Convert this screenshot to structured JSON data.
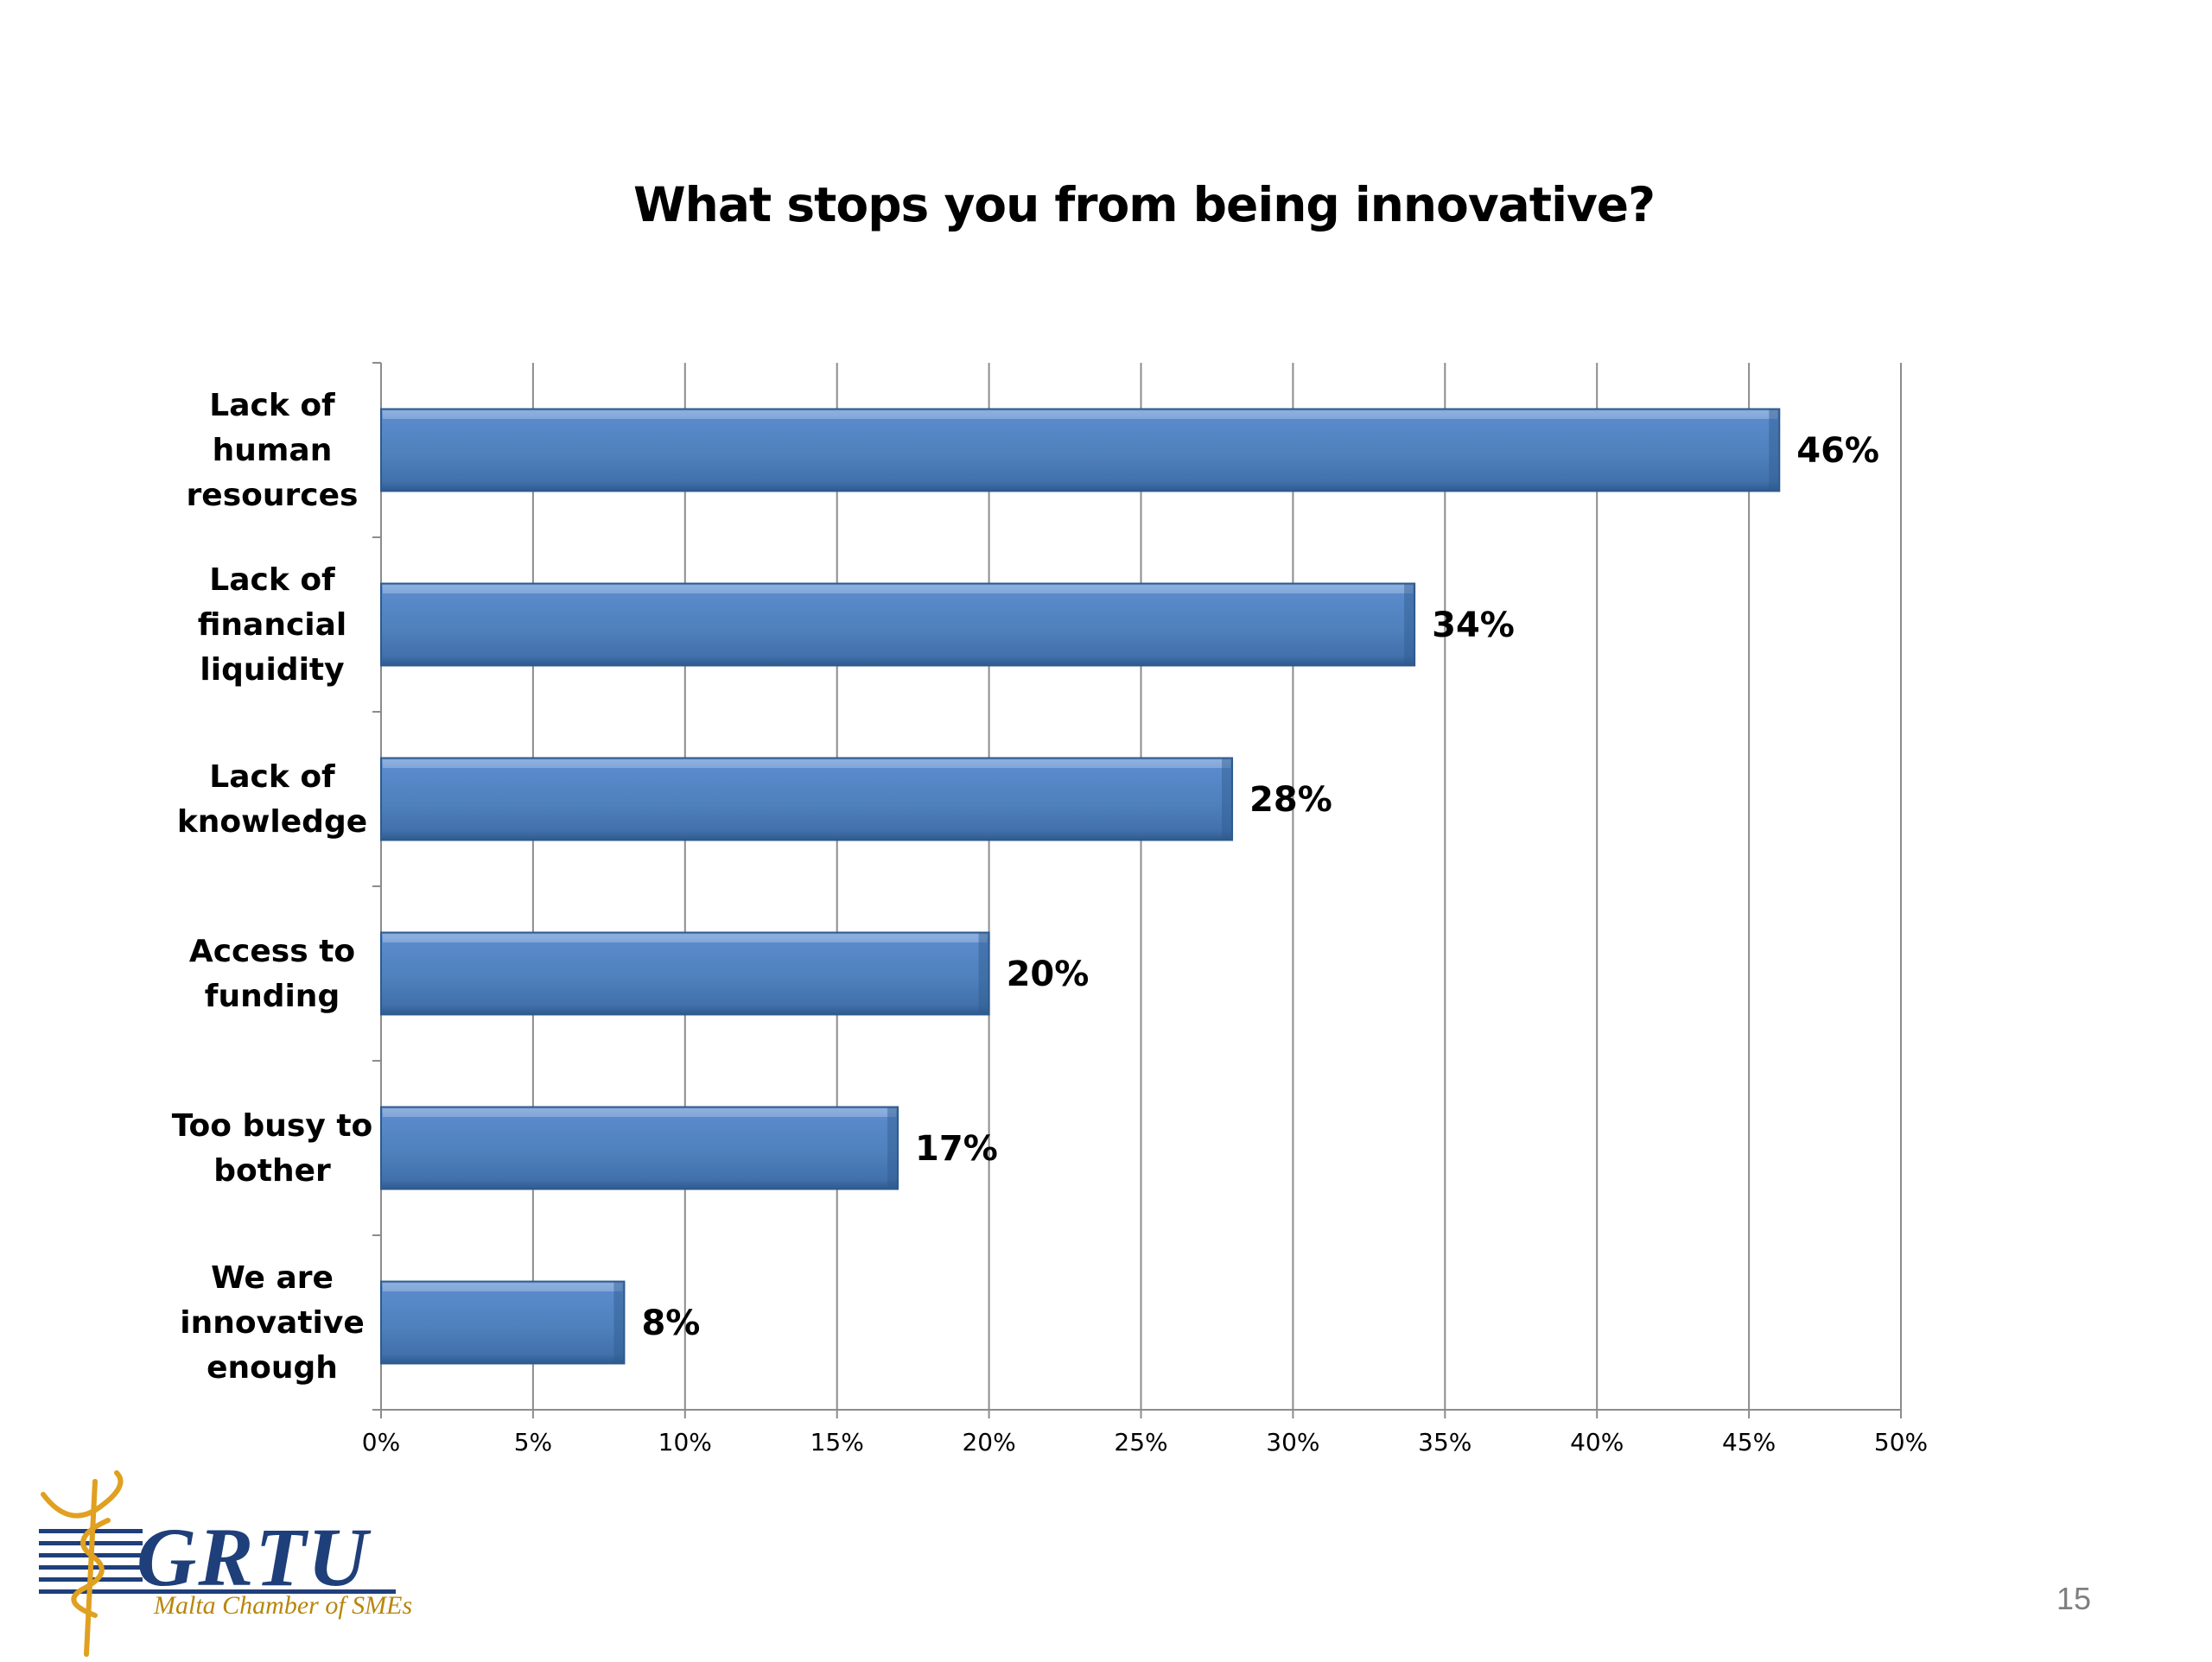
{
  "chart_data": {
    "type": "bar",
    "orientation": "horizontal",
    "title": "What stops you from being innovative?",
    "categories": [
      "Lack of human resources",
      "Lack of financial liquidity",
      "Lack of knowledge",
      "Access to funding",
      "Too busy to bother",
      "We are innovative enough"
    ],
    "category_label_lines": [
      [
        "Lack of",
        "human",
        "resources"
      ],
      [
        "Lack of",
        "financial",
        "liquidity"
      ],
      [
        "Lack of",
        "knowledge"
      ],
      [
        "Access to",
        "funding"
      ],
      [
        "Too busy to",
        "bother"
      ],
      [
        "We are",
        "innovative",
        "enough"
      ]
    ],
    "values": [
      46,
      34,
      28,
      20,
      17,
      8
    ],
    "data_labels": [
      "46%",
      "34%",
      "28%",
      "20%",
      "17%",
      "8%"
    ],
    "xlim": [
      0,
      50
    ],
    "xticks": [
      0,
      5,
      10,
      15,
      20,
      25,
      30,
      35,
      40,
      45,
      50
    ],
    "xtick_labels": [
      "0%",
      "5%",
      "10%",
      "15%",
      "20%",
      "25%",
      "30%",
      "35%",
      "40%",
      "45%",
      "50%"
    ],
    "xlabel": "",
    "ylabel": "",
    "grid": true,
    "legend": "none",
    "bar_color": "#4F81BD"
  },
  "slide_number": "15",
  "logo": {
    "text": "GRTU",
    "subtitle": "Malta Chamber of SMEs",
    "primary_color": "#1F3F7A",
    "accent_color": "#E0A020"
  }
}
